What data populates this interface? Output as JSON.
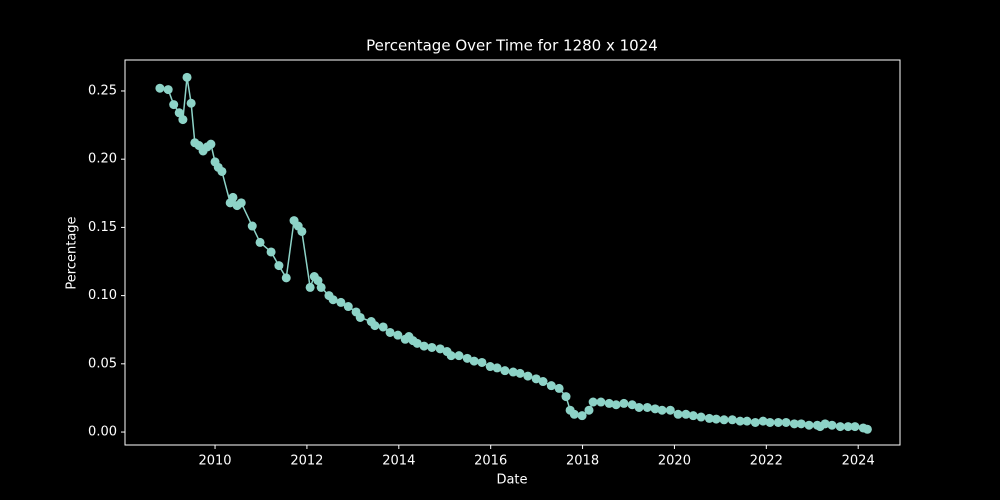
{
  "chart_data": {
    "type": "line",
    "title": "Percentage Over Time for 1280 x 1024",
    "x_label": "Date",
    "y_label": "Percentage",
    "color": "#8dd3c7",
    "background": "#000000",
    "x": [
      2008.8,
      2008.98,
      2009.1,
      2009.22,
      2009.3,
      2009.39,
      2009.48,
      2009.56,
      2009.65,
      2009.74,
      2009.83,
      2009.91,
      2010.0,
      2010.07,
      2010.15,
      2010.33,
      2010.39,
      2010.48,
      2010.57,
      2010.81,
      2010.98,
      2011.22,
      2011.39,
      2011.55,
      2011.72,
      2011.81,
      2011.89,
      2012.07,
      2012.16,
      2012.24,
      2012.31,
      2012.48,
      2012.57,
      2012.74,
      2012.9,
      2013.07,
      2013.16,
      2013.4,
      2013.48,
      2013.66,
      2013.81,
      2013.98,
      2014.14,
      2014.22,
      2014.31,
      2014.4,
      2014.55,
      2014.72,
      2014.9,
      2015.05,
      2015.14,
      2015.31,
      2015.49,
      2015.64,
      2015.81,
      2015.99,
      2016.14,
      2016.31,
      2016.49,
      2016.64,
      2016.81,
      2016.99,
      2017.14,
      2017.32,
      2017.49,
      2017.64,
      2017.73,
      2017.82,
      2017.99,
      2018.14,
      2018.23,
      2018.4,
      2018.58,
      2018.73,
      2018.9,
      2019.08,
      2019.23,
      2019.41,
      2019.58,
      2019.73,
      2019.91,
      2020.08,
      2020.25,
      2020.41,
      2020.58,
      2020.76,
      2020.91,
      2021.08,
      2021.26,
      2021.43,
      2021.58,
      2021.76,
      2021.93,
      2022.08,
      2022.26,
      2022.43,
      2022.61,
      2022.76,
      2022.93,
      2023.11,
      2023.17,
      2023.28,
      2023.43,
      2023.61,
      2023.78,
      2023.93,
      2024.11,
      2024.2
    ],
    "values": [
      0.252,
      0.251,
      0.24,
      0.234,
      0.229,
      0.26,
      0.241,
      0.212,
      0.21,
      0.206,
      0.209,
      0.211,
      0.198,
      0.194,
      0.191,
      0.168,
      0.172,
      0.166,
      0.168,
      0.151,
      0.139,
      0.132,
      0.122,
      0.113,
      0.155,
      0.151,
      0.147,
      0.106,
      0.114,
      0.111,
      0.106,
      0.1,
      0.097,
      0.095,
      0.092,
      0.088,
      0.084,
      0.081,
      0.078,
      0.077,
      0.073,
      0.071,
      0.068,
      0.07,
      0.067,
      0.065,
      0.063,
      0.062,
      0.061,
      0.059,
      0.056,
      0.056,
      0.054,
      0.052,
      0.051,
      0.048,
      0.047,
      0.045,
      0.044,
      0.043,
      0.041,
      0.039,
      0.037,
      0.034,
      0.032,
      0.026,
      0.016,
      0.013,
      0.012,
      0.016,
      0.022,
      0.022,
      0.021,
      0.02,
      0.021,
      0.02,
      0.018,
      0.018,
      0.017,
      0.016,
      0.016,
      0.013,
      0.013,
      0.012,
      0.011,
      0.01,
      0.0095,
      0.009,
      0.009,
      0.008,
      0.008,
      0.007,
      0.008,
      0.007,
      0.007,
      0.007,
      0.006,
      0.006,
      0.005,
      0.005,
      0.004,
      0.006,
      0.005,
      0.004,
      0.004,
      0.004,
      0.003,
      0.002
    ],
    "xlim": [
      2008.04,
      2024.91
    ],
    "ylim": [
      -0.0095,
      0.2727
    ],
    "xticks": [
      2010,
      2012,
      2014,
      2016,
      2018,
      2020,
      2022,
      2024
    ],
    "yticks": [
      {
        "value": 0,
        "label": "0.00"
      },
      {
        "value": 0.05,
        "label": "0.05"
      },
      {
        "value": 0.1,
        "label": "0.10"
      },
      {
        "value": 0.15,
        "label": "0.15"
      },
      {
        "value": 0.2,
        "label": "0.20"
      },
      {
        "value": 0.25,
        "label": "0.25"
      }
    ]
  }
}
